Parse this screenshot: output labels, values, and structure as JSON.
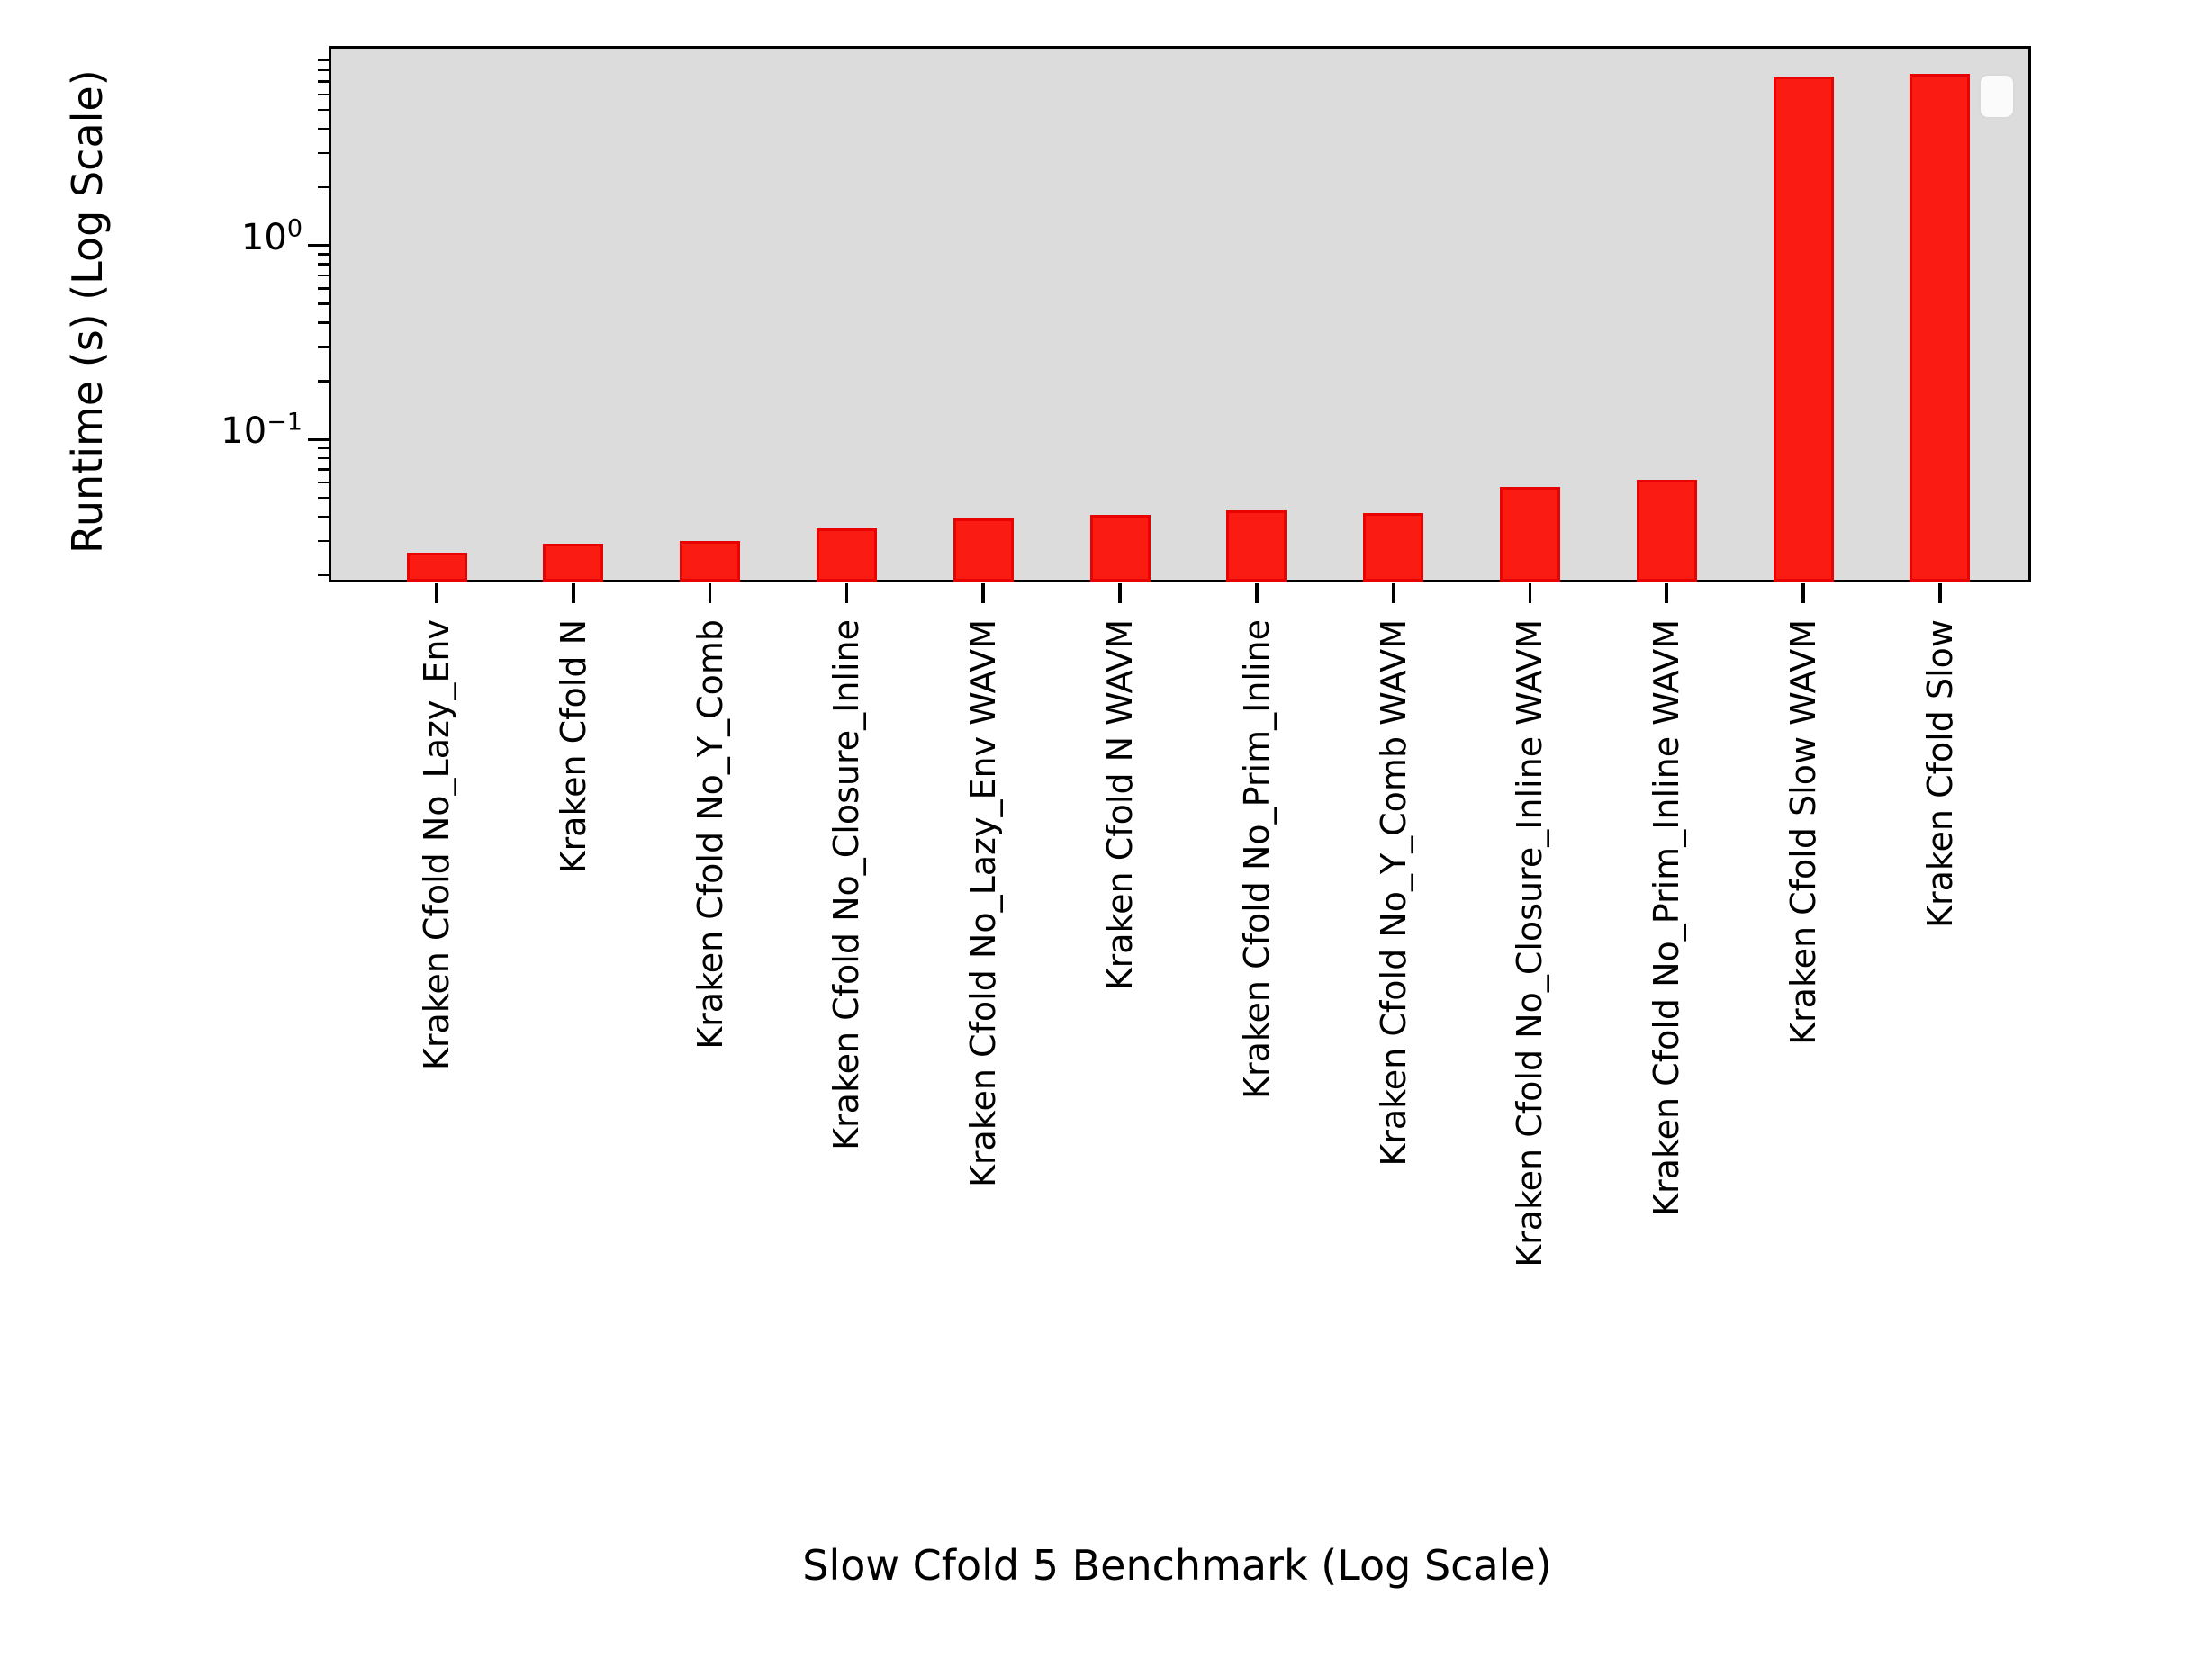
{
  "chart_data": {
    "type": "bar",
    "title": "",
    "xlabel": "Slow Cfold 5 Benchmark (Log Scale)",
    "ylabel": "Runtime (s) (Log Scale)",
    "yscale": "log",
    "ylim": [
      0.0188,
      9.9
    ],
    "grid": false,
    "categories": [
      "Kraken Cfold No_Lazy_Env",
      "Kraken Cfold N",
      "Kraken Cfold No_Y_Comb",
      "Kraken Cfold No_Closure_Inline",
      "Kraken Cfold No_Lazy_Env WAVM",
      "Kraken Cfold N WAVM",
      "Kraken Cfold No_Prim_Inline",
      "Kraken Cfold No_Y_Comb WAVM",
      "Kraken Cfold No_Closure_Inline WAVM",
      "Kraken Cfold No_Prim_Inline WAVM",
      "Kraken Cfold Slow WAVM",
      "Kraken Cfold Slow"
    ],
    "values": [
      0.026,
      0.029,
      0.03,
      0.035,
      0.039,
      0.041,
      0.043,
      0.042,
      0.057,
      0.062,
      7.4,
      7.7
    ],
    "yticks": [
      {
        "label_base": "10",
        "label_exp": "0",
        "value": 1
      },
      {
        "label_base": "10",
        "label_exp": "−1",
        "value": 0.1
      }
    ],
    "y_minor_ticks": [
      9,
      8,
      7,
      6,
      5,
      4,
      3,
      2,
      0.9,
      0.8,
      0.7,
      0.6,
      0.5,
      0.4,
      0.3,
      0.2,
      0.09,
      0.08,
      0.07,
      0.06,
      0.05,
      0.04,
      0.03,
      0.02
    ],
    "legend": {
      "visible": true,
      "entries": []
    },
    "colors": {
      "bar_fill": "#fa1b12",
      "bar_edge": "#e90300",
      "plot_bg": "#dcdcdc",
      "frame": "#000000",
      "figure_bg": "#ffffff",
      "legend_bg": "#fbfbfb",
      "legend_border": "#d9d9d9",
      "text": "#000000"
    }
  }
}
